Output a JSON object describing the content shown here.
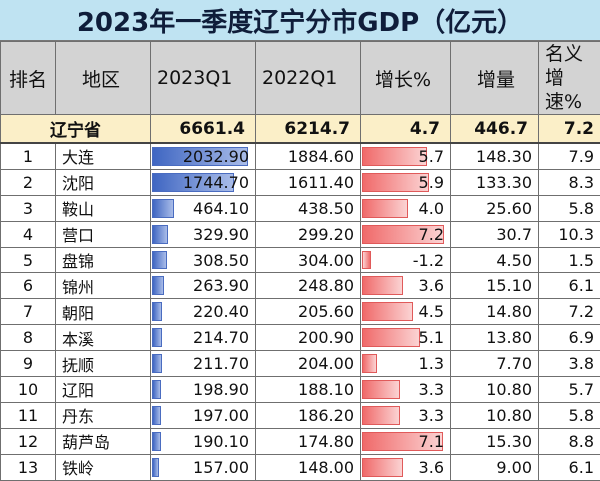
{
  "title": "2023年一季度辽宁分市GDP（亿元）",
  "headers": {
    "rank": "排名",
    "region": "地区",
    "q2023": "2023Q1",
    "q2022": "2022Q1",
    "growth": "增长%",
    "increase": "增量",
    "nominal": "名义增速%"
  },
  "province": {
    "name": "辽宁省",
    "q2023": "6661.4",
    "q2022": "6214.7",
    "growth": "4.7",
    "increase": "446.7",
    "nominal": "7.2"
  },
  "colors": {
    "title_bg": "#bfe3f2",
    "header_bg": "#d3d3d3",
    "province_bg": "#fbefc8",
    "bar_blue": "#3f66c2",
    "bar_red": "#f06a6a"
  },
  "rows": [
    {
      "rank": "1",
      "region": "大连",
      "q2023": "2032.90",
      "q2022": "1884.60",
      "growth": "5.7",
      "increase": "148.30",
      "nominal": "7.9",
      "q2023_value": 2032.9,
      "growth_value": 5.7
    },
    {
      "rank": "2",
      "region": "沈阳",
      "q2023": "1744.70",
      "q2022": "1611.40",
      "growth": "5.9",
      "increase": "133.30",
      "nominal": "8.3",
      "q2023_value": 1744.7,
      "growth_value": 5.9
    },
    {
      "rank": "3",
      "region": "鞍山",
      "q2023": "464.10",
      "q2022": "438.50",
      "growth": "4.0",
      "increase": "25.60",
      "nominal": "5.8",
      "q2023_value": 464.1,
      "growth_value": 4.0
    },
    {
      "rank": "4",
      "region": "营口",
      "q2023": "329.90",
      "q2022": "299.20",
      "growth": "7.2",
      "increase": "30.7",
      "nominal": "10.3",
      "q2023_value": 329.9,
      "growth_value": 7.2
    },
    {
      "rank": "5",
      "region": "盘锦",
      "q2023": "308.50",
      "q2022": "304.00",
      "growth": "-1.2",
      "increase": "4.50",
      "nominal": "1.5",
      "q2023_value": 308.5,
      "growth_value": -1.2
    },
    {
      "rank": "6",
      "region": "锦州",
      "q2023": "263.90",
      "q2022": "248.80",
      "growth": "3.6",
      "increase": "15.10",
      "nominal": "6.1",
      "q2023_value": 263.9,
      "growth_value": 3.6
    },
    {
      "rank": "7",
      "region": "朝阳",
      "q2023": "220.40",
      "q2022": "205.60",
      "growth": "4.5",
      "increase": "14.80",
      "nominal": "7.2",
      "q2023_value": 220.4,
      "growth_value": 4.5
    },
    {
      "rank": "8",
      "region": "本溪",
      "q2023": "214.70",
      "q2022": "200.90",
      "growth": "5.1",
      "increase": "13.80",
      "nominal": "6.9",
      "q2023_value": 214.7,
      "growth_value": 5.1
    },
    {
      "rank": "9",
      "region": "抚顺",
      "q2023": "211.70",
      "q2022": "204.00",
      "growth": "1.3",
      "increase": "7.70",
      "nominal": "3.8",
      "q2023_value": 211.7,
      "growth_value": 1.3
    },
    {
      "rank": "10",
      "region": "辽阳",
      "q2023": "198.90",
      "q2022": "188.10",
      "growth": "3.3",
      "increase": "10.80",
      "nominal": "5.7",
      "q2023_value": 198.9,
      "growth_value": 3.3
    },
    {
      "rank": "11",
      "region": "丹东",
      "q2023": "197.00",
      "q2022": "186.20",
      "growth": "3.3",
      "increase": "10.80",
      "nominal": "5.8",
      "q2023_value": 197.0,
      "growth_value": 3.3
    },
    {
      "rank": "12",
      "region": "葫芦岛",
      "q2023": "190.10",
      "q2022": "174.80",
      "growth": "7.1",
      "increase": "15.30",
      "nominal": "8.8",
      "q2023_value": 190.1,
      "growth_value": 7.1
    },
    {
      "rank": "13",
      "region": "铁岭",
      "q2023": "157.00",
      "q2022": "148.00",
      "growth": "3.6",
      "increase": "9.00",
      "nominal": "6.1",
      "q2023_value": 157.0,
      "growth_value": 3.6
    }
  ]
}
